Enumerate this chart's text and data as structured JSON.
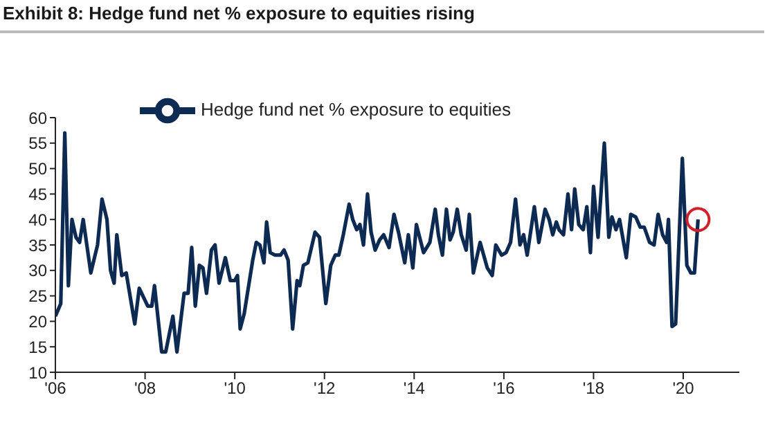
{
  "chart_data": {
    "type": "line",
    "title": "Exhibit 8: Hedge fund net % exposure to equities rising",
    "x": [
      2006.0,
      2006.12,
      2006.21,
      2006.29,
      2006.37,
      2006.46,
      2006.54,
      2006.62,
      2006.79,
      2006.94,
      2007.04,
      2007.15,
      2007.23,
      2007.31,
      2007.37,
      2007.48,
      2007.58,
      2007.77,
      2007.87,
      2008.06,
      2008.15,
      2008.21,
      2008.37,
      2008.46,
      2008.62,
      2008.71,
      2008.87,
      2008.96,
      2009.04,
      2009.12,
      2009.21,
      2009.29,
      2009.37,
      2009.48,
      2009.56,
      2009.65,
      2009.79,
      2009.9,
      2010.0,
      2010.06,
      2010.12,
      2010.21,
      2010.4,
      2010.48,
      2010.56,
      2010.65,
      2010.71,
      2010.79,
      2010.9,
      2011.02,
      2011.1,
      2011.19,
      2011.29,
      2011.39,
      2011.45,
      2011.53,
      2011.63,
      2011.79,
      2011.89,
      2012.03,
      2012.14,
      2012.24,
      2012.32,
      2012.42,
      2012.55,
      2012.63,
      2012.72,
      2012.79,
      2012.87,
      2012.96,
      2013.04,
      2013.13,
      2013.23,
      2013.32,
      2013.44,
      2013.55,
      2013.65,
      2013.79,
      2013.87,
      2013.97,
      2014.05,
      2014.21,
      2014.35,
      2014.47,
      2014.54,
      2014.63,
      2014.72,
      2014.8,
      2014.87,
      2014.96,
      2015.05,
      2015.16,
      2015.23,
      2015.32,
      2015.47,
      2015.63,
      2015.74,
      2015.82,
      2015.95,
      2016.05,
      2016.15,
      2016.26,
      2016.36,
      2016.44,
      2016.52,
      2016.68,
      2016.78,
      2016.92,
      2017.01,
      2017.09,
      2017.17,
      2017.23,
      2017.33,
      2017.43,
      2017.51,
      2017.58,
      2017.67,
      2017.77,
      2017.85,
      2017.93,
      2018.0,
      2018.1,
      2018.24,
      2018.34,
      2018.41,
      2018.5,
      2018.58,
      2018.73,
      2018.83,
      2018.94,
      2019.04,
      2019.13,
      2019.25,
      2019.35,
      2019.44,
      2019.54,
      2019.63,
      2019.67,
      2019.75,
      2019.83,
      2019.98,
      2020.08,
      2020.17,
      2020.25,
      2020.33
    ],
    "series": [
      {
        "name": "Hedge fund net % exposure to equities",
        "color": "#0d2a52",
        "values": [
          21,
          23.5,
          57,
          27,
          40,
          36.5,
          35.5,
          40,
          29.5,
          35,
          44,
          40,
          30,
          27.5,
          37,
          29,
          29.5,
          19.5,
          26.5,
          23,
          23,
          27,
          14,
          14,
          21,
          14,
          25.5,
          25.5,
          34.5,
          23,
          31,
          30.5,
          25.5,
          34,
          35,
          27.5,
          32.5,
          28,
          28,
          29,
          18.5,
          21.5,
          32,
          35.5,
          35,
          31.5,
          39.5,
          33.5,
          33,
          33,
          34,
          32,
          18.5,
          28,
          27,
          31,
          31.5,
          37.5,
          36.5,
          23.5,
          31,
          33,
          33,
          37,
          43,
          40,
          38,
          39,
          35,
          45,
          37.5,
          34,
          36,
          37,
          34.5,
          41,
          37.5,
          31.5,
          37,
          30.5,
          39,
          33.5,
          35.5,
          42,
          37,
          33,
          42,
          36,
          37.5,
          42,
          37,
          34,
          41,
          29.5,
          35.5,
          30.5,
          29,
          35,
          33,
          33.5,
          35.5,
          44,
          35,
          37,
          33,
          42.5,
          35.5,
          42,
          40,
          37,
          39.5,
          38,
          37,
          45,
          38,
          46,
          39,
          38,
          42.5,
          33.5,
          46.5,
          36.5,
          55,
          36.5,
          40.5,
          38,
          40,
          32.5,
          41,
          40.5,
          38.5,
          38.5,
          35.5,
          35,
          41,
          37,
          35.5,
          40,
          19,
          19.5,
          52,
          31,
          29.5,
          29.5,
          40
        ]
      }
    ],
    "xlim": [
      2006,
      2021.25
    ],
    "xticks": [
      {
        "value": 2006,
        "label": "'06"
      },
      {
        "value": 2008,
        "label": "'08"
      },
      {
        "value": 2010,
        "label": "'10"
      },
      {
        "value": 2012,
        "label": "'12"
      },
      {
        "value": 2014,
        "label": "'14"
      },
      {
        "value": 2016,
        "label": "'16"
      },
      {
        "value": 2018,
        "label": "'18"
      },
      {
        "value": 2020,
        "label": "'20"
      }
    ],
    "ylim": [
      10,
      60
    ],
    "yticks": [
      10,
      15,
      20,
      25,
      30,
      35,
      40,
      45,
      50,
      55,
      60
    ],
    "grid": false,
    "legend": "top",
    "marker": "none",
    "line_style": "solid"
  }
}
